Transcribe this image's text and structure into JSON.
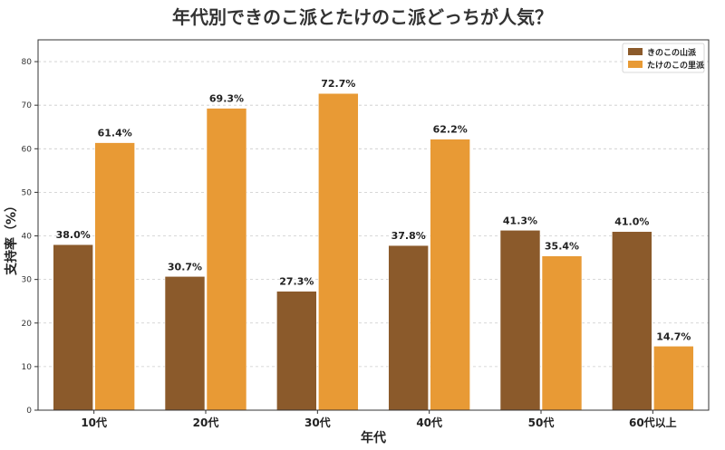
{
  "chart_data": {
    "type": "bar",
    "title": "年代別できのこ派とたけのこ派どっちが人気？",
    "xlabel": "年代",
    "ylabel": "支持率（%）",
    "categories": [
      "10代",
      "20代",
      "30代",
      "40代",
      "50代",
      "60代以上"
    ],
    "series": [
      {
        "name": "きのこの山派",
        "values": [
          38.0,
          30.7,
          27.3,
          37.8,
          41.3,
          41.0
        ],
        "labels": [
          "38.0%",
          "30.7%",
          "27.3%",
          "37.8%",
          "41.3%",
          "41.0%"
        ],
        "color": "#8B5A2B"
      },
      {
        "name": "たけのこの里派",
        "values": [
          61.4,
          69.3,
          72.7,
          62.2,
          35.4,
          14.7
        ],
        "labels": [
          "61.4%",
          "69.3%",
          "72.7%",
          "62.2%",
          "35.4%",
          "14.7%"
        ],
        "color": "#E89A35"
      }
    ],
    "ylim": [
      0,
      85
    ],
    "yticks": [
      0,
      10,
      20,
      30,
      40,
      50,
      60,
      70,
      80
    ],
    "grid": true,
    "legend_position": "top-right"
  }
}
